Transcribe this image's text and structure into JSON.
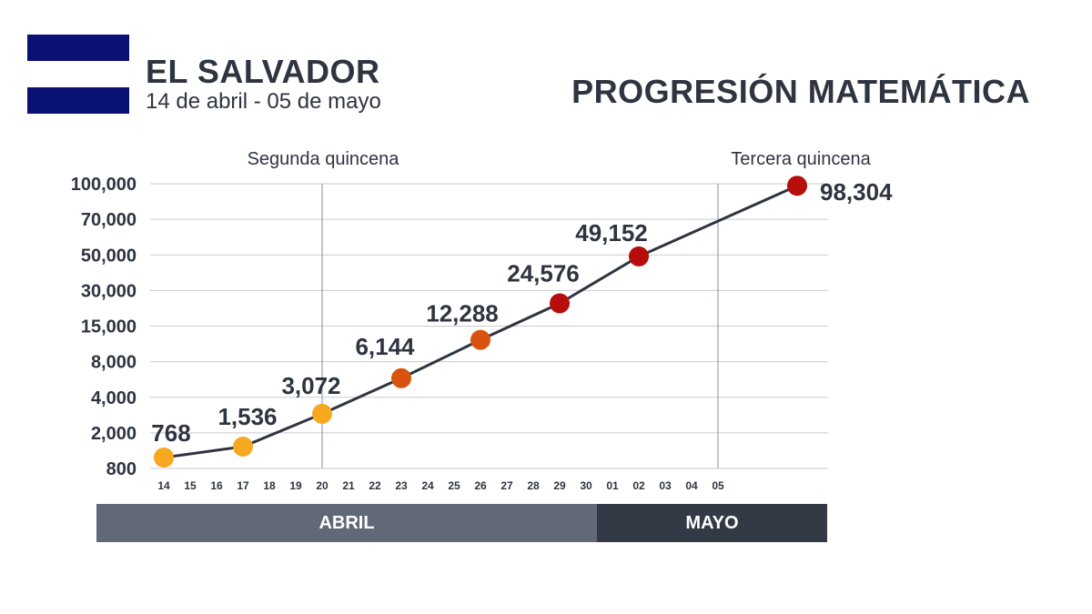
{
  "header": {
    "country": "EL SALVADOR",
    "date_range": "14 de abril - 05 de mayo",
    "title": "PROGRESIÓN MATEMÁTICA"
  },
  "colors": {
    "flag_blue": "#0a1175",
    "text": "#2e3440",
    "line": "#2e3440",
    "grid": "#c8cbd0",
    "abril_bar": "#616877",
    "mayo_bar": "#343a45",
    "point_yellow": "#f6a81f",
    "point_orange": "#d8530f",
    "point_red": "#b70d0d"
  },
  "months": {
    "abril": "ABRIL",
    "mayo": "MAYO"
  },
  "chart_data": {
    "type": "line",
    "title": "PROGRESIÓN MATEMÁTICA",
    "xlabel": "",
    "ylabel": "",
    "grid": true,
    "y_ticks": [
      "100,000",
      "70,000",
      "50,000",
      "30,000",
      "15,000",
      "8,000",
      "4,000",
      "2,000",
      "800"
    ],
    "x_ticks": [
      "14",
      "15",
      "16",
      "17",
      "18",
      "19",
      "20",
      "21",
      "22",
      "23",
      "24",
      "25",
      "26",
      "27",
      "28",
      "29",
      "30",
      "01",
      "02",
      "03",
      "04",
      "05"
    ],
    "section_labels": [
      "Segunda quincena",
      "Tercera quincena"
    ],
    "section_dividers": [
      "20",
      "05"
    ],
    "points": [
      {
        "x": "14 abril",
        "value": 768,
        "label": "768",
        "color": "#f6a81f"
      },
      {
        "x": "17 abril",
        "value": 1536,
        "label": "1,536",
        "color": "#f6a81f"
      },
      {
        "x": "20 abril",
        "value": 3072,
        "label": "3,072",
        "color": "#f6a81f"
      },
      {
        "x": "23 abril",
        "value": 6144,
        "label": "6,144",
        "color": "#d8530f"
      },
      {
        "x": "26 abril",
        "value": 12288,
        "label": "12,288",
        "color": "#d8530f"
      },
      {
        "x": "29 abril",
        "value": 24576,
        "label": "24,576",
        "color": "#b70d0d"
      },
      {
        "x": "02 mayo",
        "value": 49152,
        "label": "49,152",
        "color": "#b70d0d"
      },
      {
        "x": "08 mayo",
        "value": 98304,
        "label": "98,304",
        "color": "#b70d0d"
      }
    ]
  }
}
